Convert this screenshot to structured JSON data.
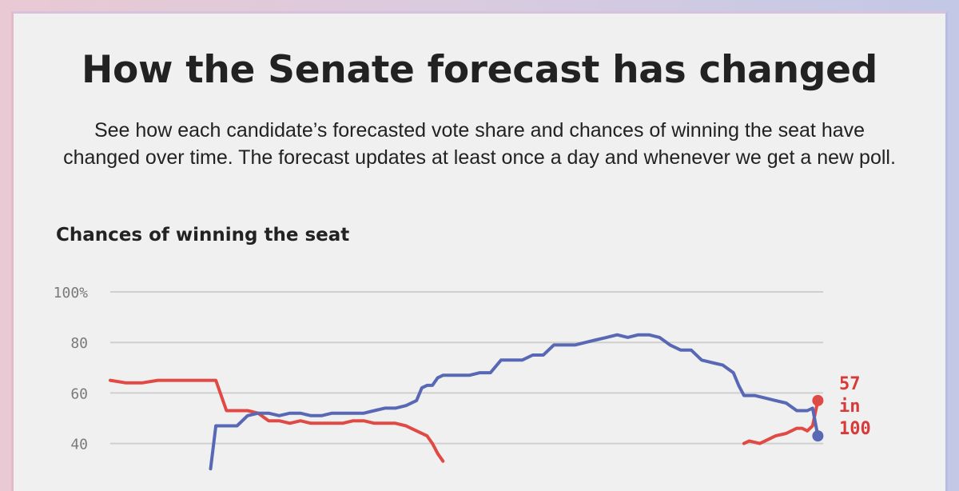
{
  "title": "How the Senate forecast has changed",
  "subtitle": "See how each candidate’s forecasted vote share and chances of winning the seat have changed over time. The forecast updates at least once a day and whenever we get a new poll.",
  "chart_title": "Chances of winning the seat",
  "colors": {
    "republican": "#e04a44",
    "democrat": "#5868b4",
    "grid": "#cfcfcf",
    "tick": "#7a7a7a"
  },
  "chart_data": {
    "type": "line",
    "title": "Chances of winning the seat",
    "ylim": [
      0,
      100
    ],
    "xlim": [
      0,
      135
    ],
    "yticks": [
      {
        "value": 100,
        "label": "100%"
      },
      {
        "value": 80,
        "label": "80"
      },
      {
        "value": 60,
        "label": "60"
      },
      {
        "value": 40,
        "label": "40"
      }
    ],
    "grid": true,
    "series": [
      {
        "color": "#e04a44",
        "x": [
          0,
          3,
          6,
          9,
          11,
          13,
          17,
          20,
          22,
          24,
          26,
          28,
          30,
          32,
          34,
          36,
          38,
          40,
          42,
          44,
          46,
          48,
          50,
          52,
          54,
          56,
          58,
          60,
          61,
          62,
          63
        ],
        "y": [
          65,
          64,
          64,
          65,
          65,
          65,
          65,
          65,
          53,
          53,
          53,
          52,
          49,
          49,
          48,
          49,
          48,
          48,
          48,
          48,
          49,
          49,
          48,
          48,
          48,
          47,
          45,
          43,
          40,
          36,
          33
        ]
      },
      {
        "color": "#e04a44",
        "x": [
          120,
          121,
          123,
          124,
          126,
          128,
          130,
          131,
          132,
          133,
          134
        ],
        "y": [
          40,
          41,
          40,
          41,
          43,
          44,
          46,
          46,
          45,
          47,
          57
        ]
      },
      {
        "color": "#5868b4",
        "x": [
          19,
          20,
          22,
          24,
          26,
          28,
          30,
          32,
          34,
          36,
          38,
          40,
          42,
          44,
          46,
          48,
          50,
          52,
          54,
          56,
          58,
          59,
          60,
          61,
          62,
          63,
          64,
          66,
          68,
          70,
          72,
          74,
          76,
          78,
          80,
          82,
          84,
          86,
          88,
          90,
          92,
          94,
          96,
          98,
          100,
          102,
          104,
          106,
          108,
          110,
          112,
          114,
          116,
          118,
          119,
          120,
          122,
          124,
          126,
          128,
          130,
          131,
          132,
          133,
          134
        ],
        "y": [
          30,
          47,
          47,
          47,
          51,
          52,
          52,
          51,
          52,
          52,
          51,
          51,
          52,
          52,
          52,
          52,
          53,
          54,
          54,
          55,
          57,
          62,
          63,
          63,
          66,
          67,
          67,
          67,
          67,
          68,
          68,
          73,
          73,
          73,
          75,
          75,
          79,
          79,
          79,
          80,
          81,
          82,
          83,
          82,
          83,
          83,
          82,
          79,
          77,
          77,
          73,
          72,
          71,
          68,
          63,
          59,
          59,
          58,
          57,
          56,
          53,
          53,
          53,
          54,
          43
        ]
      }
    ],
    "end_label": {
      "value": 57,
      "line1": "57",
      "line2": "in",
      "line3": "100"
    }
  }
}
